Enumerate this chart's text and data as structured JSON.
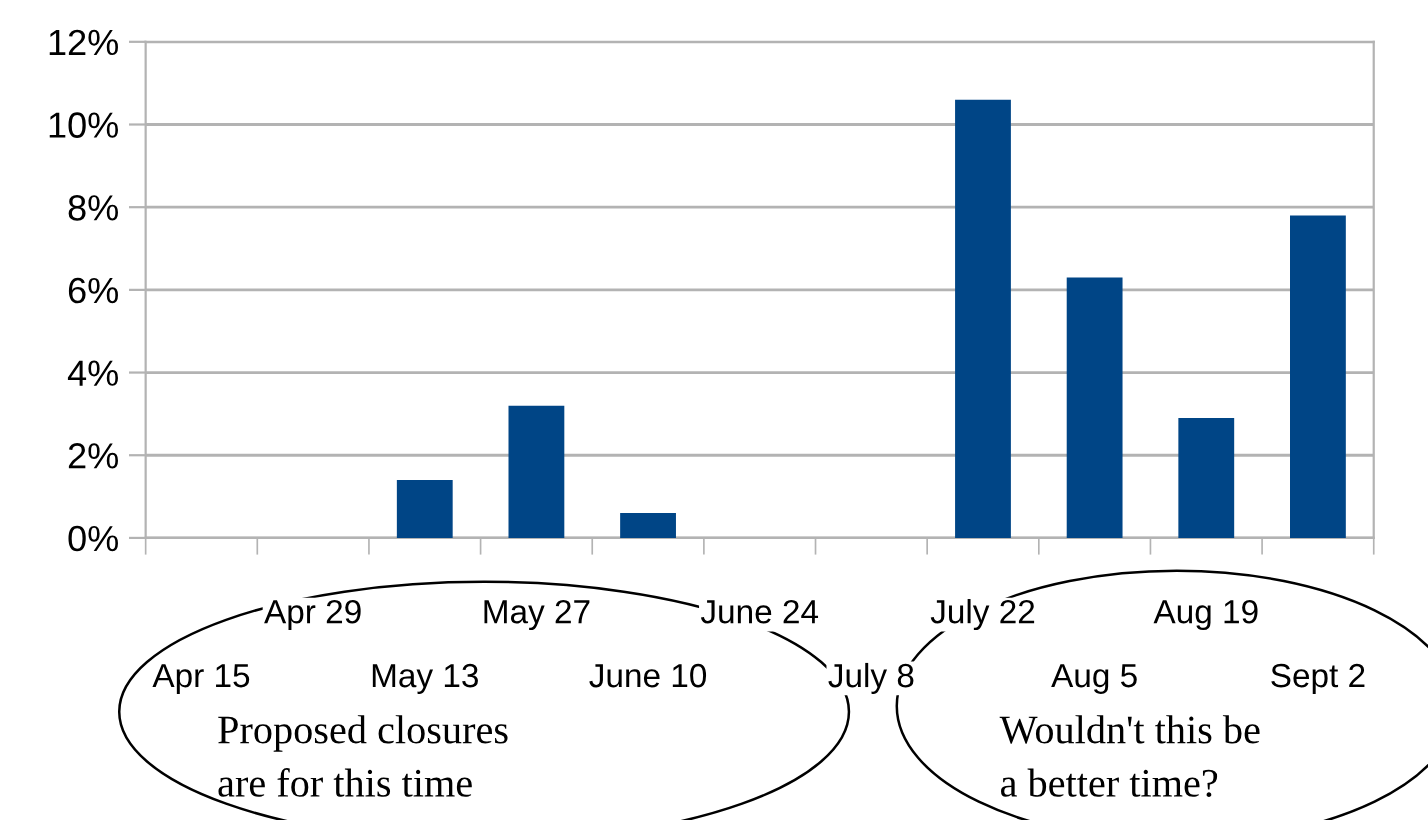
{
  "chart_data": {
    "type": "bar",
    "categories": [
      "Apr 15",
      "Apr 29",
      "May 13",
      "May 27",
      "June 10",
      "June 24",
      "July 8",
      "July 22",
      "Aug 5",
      "Aug 19",
      "Sept 2"
    ],
    "values": [
      0,
      0,
      1.4,
      3.2,
      0.6,
      0,
      0,
      10.6,
      6.3,
      2.9,
      7.8
    ],
    "color": "#004586",
    "ylim": [
      0,
      12
    ],
    "yticks": [
      {
        "value": 0,
        "label": "0%"
      },
      {
        "value": 2,
        "label": "2%"
      },
      {
        "value": 4,
        "label": "4%"
      },
      {
        "value": 6,
        "label": "6%"
      },
      {
        "value": 8,
        "label": "8%"
      },
      {
        "value": 10,
        "label": "10%"
      },
      {
        "value": 12,
        "label": "12%"
      }
    ],
    "grid": "y",
    "annotations": [
      "Proposed closures\nare for this time",
      "Wouldn't this be\na better time?"
    ]
  }
}
